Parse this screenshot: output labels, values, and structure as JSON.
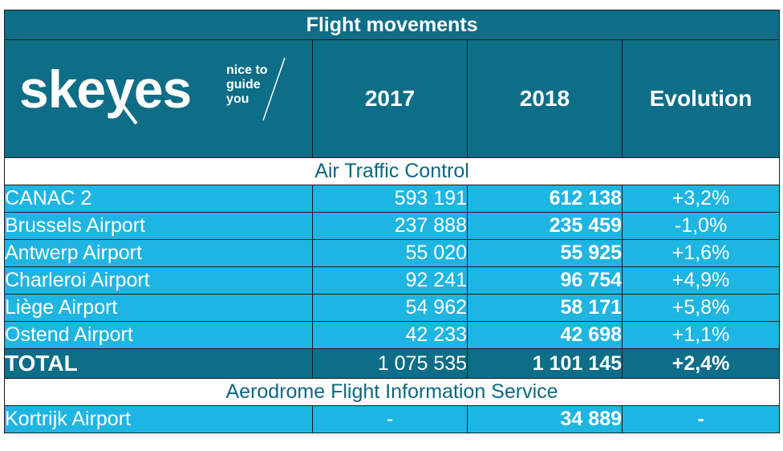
{
  "table": {
    "title": "Flight movements",
    "logo": {
      "wordmark": "skeyes",
      "tagline": [
        "nice to",
        "guide",
        "you"
      ],
      "color": "#ffffff"
    },
    "headers": [
      "2017",
      "2018",
      "Evolution"
    ],
    "sections": [
      {
        "name": "Air Traffic Control",
        "rows": [
          {
            "label": "CANAC 2",
            "y2017": "593 191",
            "y2018": "612 138",
            "evolution": "+3,2%"
          },
          {
            "label": "Brussels Airport",
            "y2017": "237 888",
            "y2018": "235 459",
            "evolution": "-1,0%"
          },
          {
            "label": "Antwerp Airport",
            "y2017": "55 020",
            "y2018": "55 925",
            "evolution": "+1,6%"
          },
          {
            "label": "Charleroi Airport",
            "y2017": "92 241",
            "y2018": "96 754",
            "evolution": "+4,9%"
          },
          {
            "label": "Liège Airport",
            "y2017": "54 962",
            "y2018": "58 171",
            "evolution": "+5,8%"
          },
          {
            "label": "Ostend Airport",
            "y2017": "42 233",
            "y2018": "42 698",
            "evolution": "+1,1%"
          }
        ],
        "total": {
          "label": "TOTAL",
          "y2017": "1 075 535",
          "y2018": "1 101 145",
          "evolution": "+2,4%"
        }
      },
      {
        "name": "Aerodrome Flight Information Service",
        "rows": [
          {
            "label": "Kortrijk Airport",
            "y2017": "-",
            "y2018": "34 889",
            "evolution": "-"
          }
        ]
      }
    ],
    "colors": {
      "header_bg": "#0e6e87",
      "row_bg": "#1fb5e2",
      "section_text": "#0d6781",
      "text": "#ffffff"
    }
  }
}
